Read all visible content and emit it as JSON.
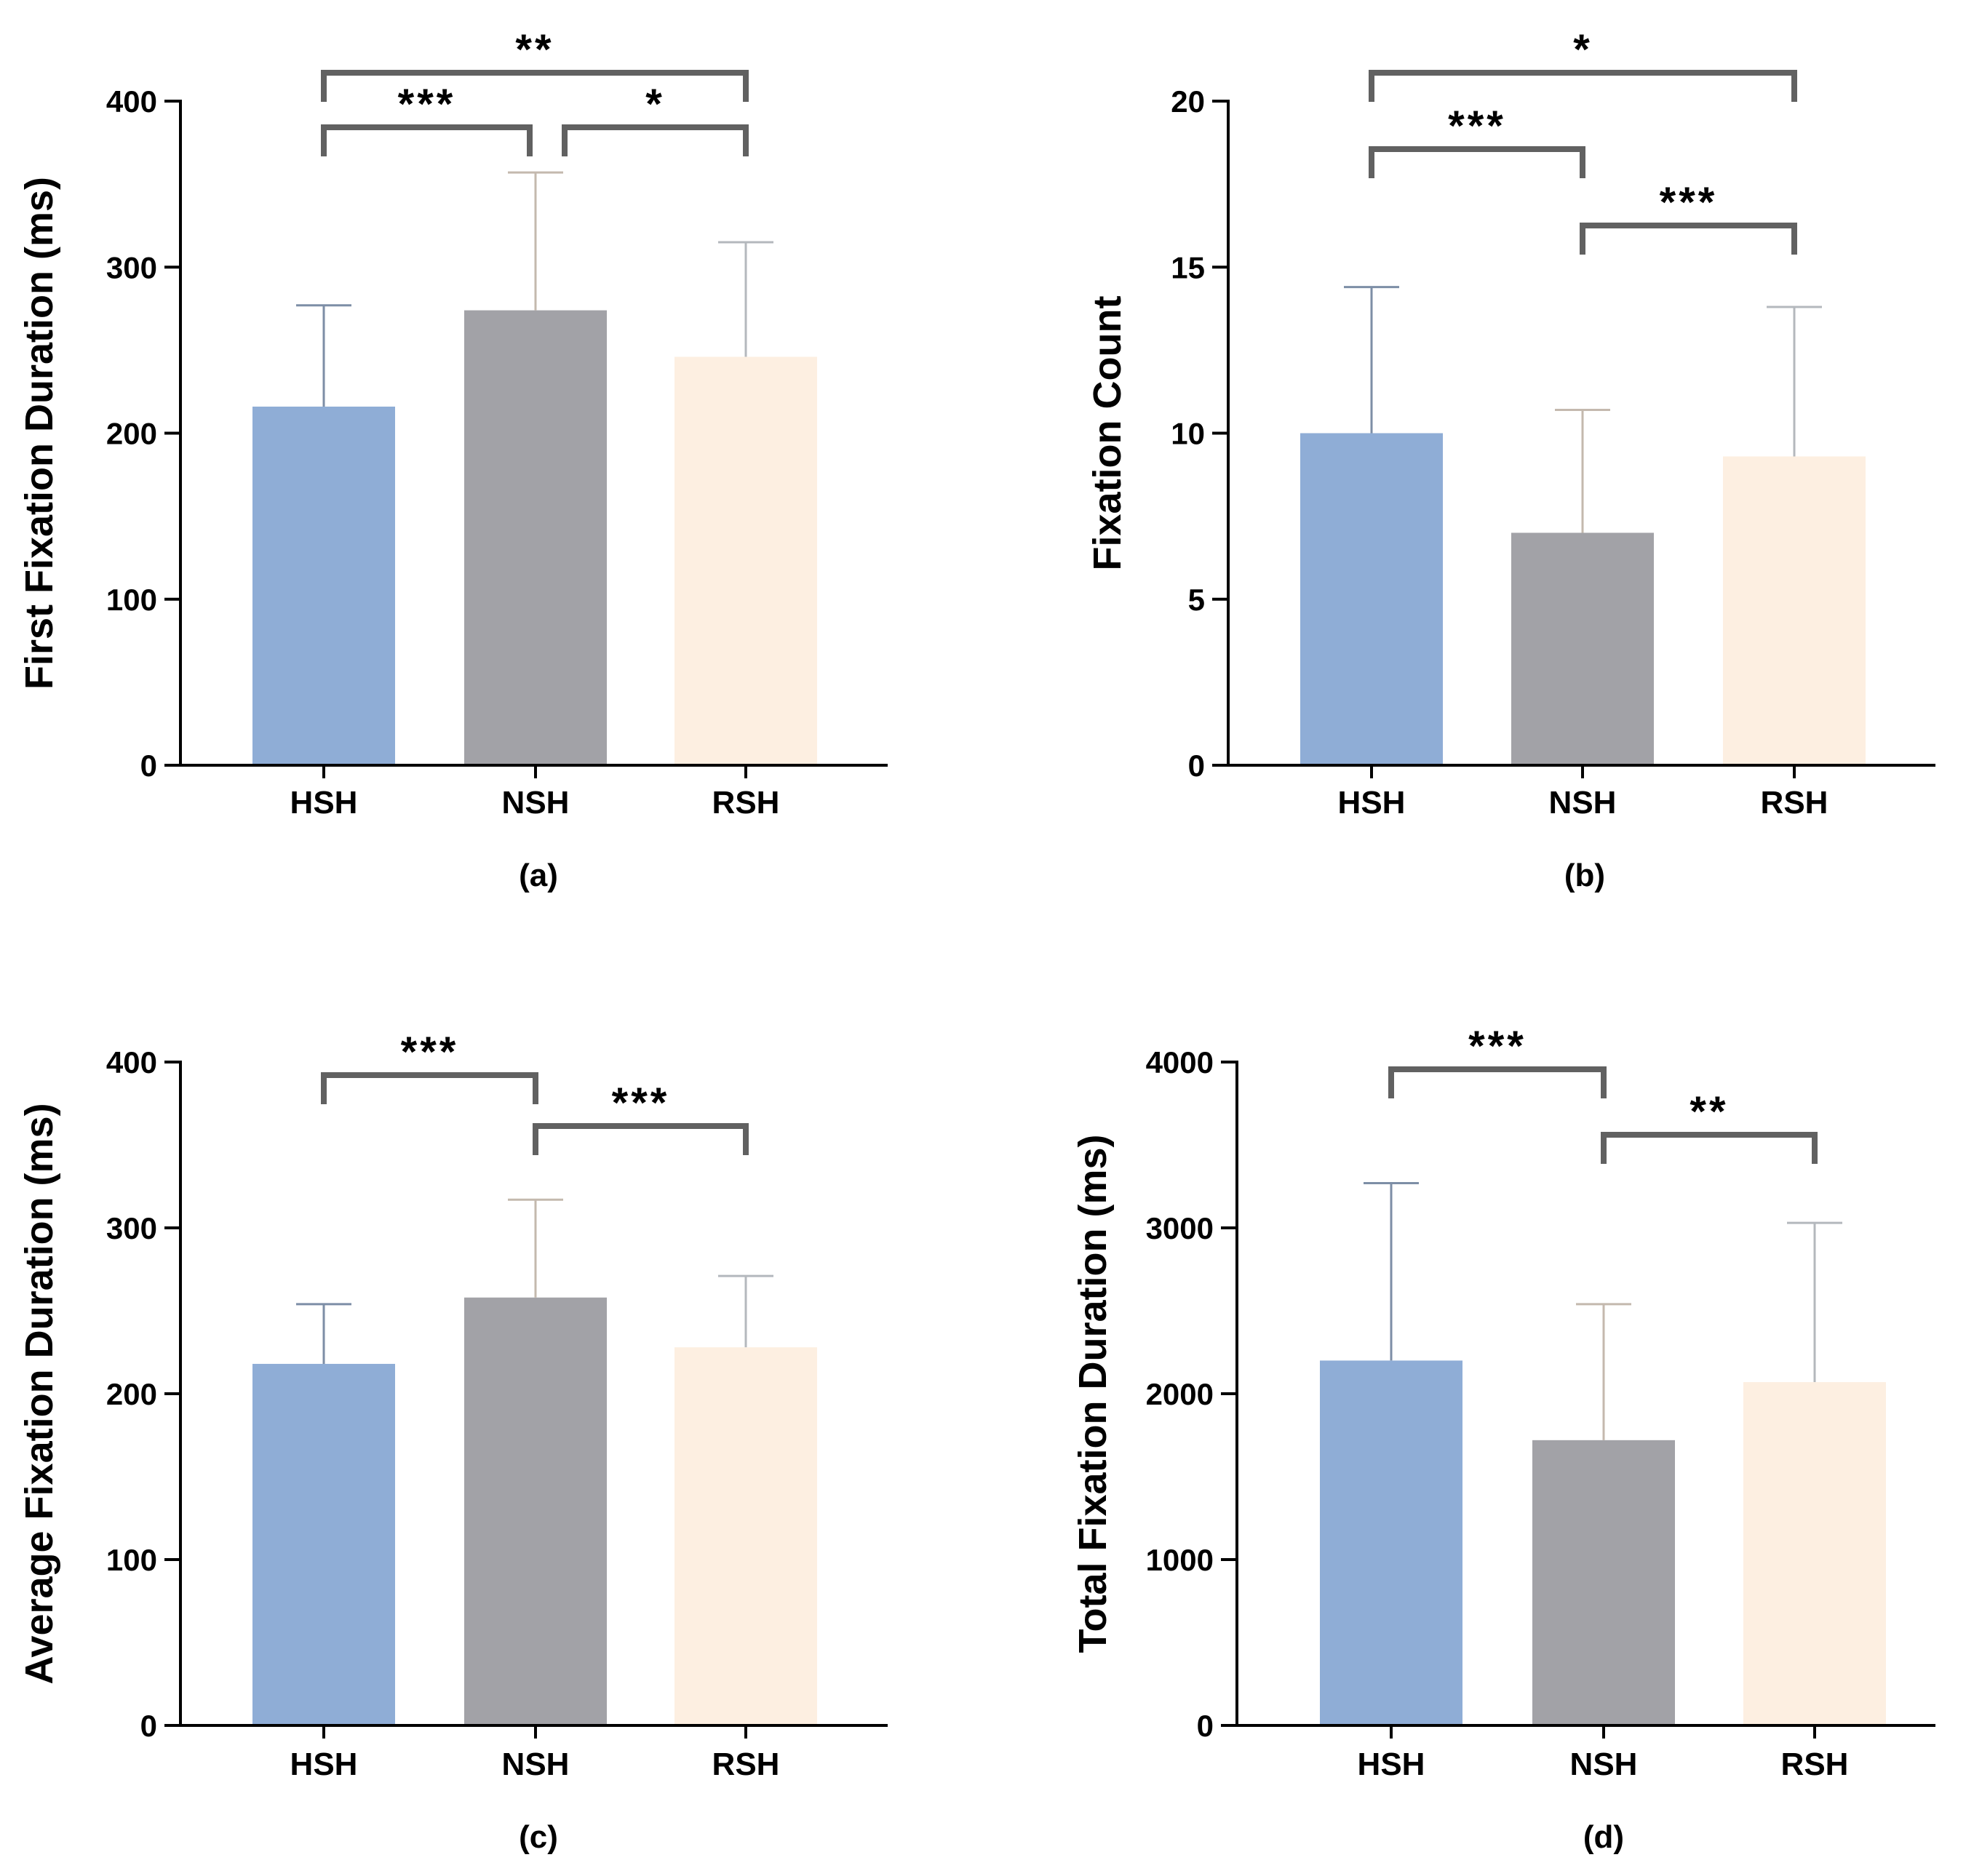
{
  "colors": {
    "HSH": "#8fadd6",
    "HSH_error": "#7d8ea6",
    "NSH": "#a2a2a7",
    "NSH_error": "#c4b9ae",
    "RSH": "#fdefe1",
    "RSH_error": "#b4b8bd",
    "axis": "#000000",
    "bracket": "#616161"
  },
  "chart_data": [
    {
      "id": "a",
      "type": "bar",
      "caption": "(a)",
      "ylabel": "First Fixation Duration (ms)",
      "xlabel": "",
      "categories": [
        "HSH",
        "NSH",
        "RSH"
      ],
      "values": [
        216,
        274,
        246
      ],
      "errors": [
        61,
        83,
        69
      ],
      "ylim": [
        0,
        400
      ],
      "yticks": [
        0,
        100,
        200,
        300,
        400
      ],
      "ytick_labels": [
        "0",
        "100",
        "200",
        "300",
        "400"
      ],
      "significance": [
        {
          "from": "HSH",
          "to": "NSH",
          "label": "***",
          "level": 1
        },
        {
          "from": "NSH",
          "to": "RSH",
          "label": "*",
          "level": 1
        },
        {
          "from": "HSH",
          "to": "RSH",
          "label": "**",
          "level": 2
        }
      ]
    },
    {
      "id": "b",
      "type": "bar",
      "caption": "(b)",
      "ylabel": "Fixation Count",
      "xlabel": "",
      "categories": [
        "HSH",
        "NSH",
        "RSH"
      ],
      "values": [
        10.0,
        7.0,
        9.3
      ],
      "errors": [
        4.4,
        3.7,
        4.5
      ],
      "ylim": [
        0,
        20
      ],
      "yticks": [
        0,
        5,
        10,
        15,
        20
      ],
      "ytick_labels": [
        "0",
        "5",
        "10",
        "15",
        "20"
      ],
      "significance": [
        {
          "from": "NSH",
          "to": "RSH",
          "label": "***",
          "level": 1
        },
        {
          "from": "HSH",
          "to": "NSH",
          "label": "***",
          "level": 2
        },
        {
          "from": "HSH",
          "to": "RSH",
          "label": "*",
          "level": 3
        }
      ]
    },
    {
      "id": "c",
      "type": "bar",
      "caption": "(c)",
      "ylabel": "Average Fixation Duration (ms)",
      "xlabel": "",
      "categories": [
        "HSH",
        "NSH",
        "RSH"
      ],
      "values": [
        218,
        258,
        228
      ],
      "errors": [
        36,
        59,
        43
      ],
      "ylim": [
        0,
        400
      ],
      "yticks": [
        0,
        100,
        200,
        300,
        400
      ],
      "ytick_labels": [
        "0",
        "100",
        "200",
        "300",
        "400"
      ],
      "significance": [
        {
          "from": "NSH",
          "to": "RSH",
          "label": "***",
          "level": 1
        },
        {
          "from": "HSH",
          "to": "NSH",
          "label": "***",
          "level": 2
        }
      ]
    },
    {
      "id": "d",
      "type": "bar",
      "caption": "(d)",
      "ylabel": "Total Fixation Duration (ms)",
      "xlabel": "",
      "categories": [
        "HSH",
        "NSH",
        "RSH"
      ],
      "values": [
        2200,
        1720,
        2070
      ],
      "errors": [
        1070,
        820,
        960
      ],
      "ylim": [
        0,
        4000
      ],
      "yticks": [
        0,
        1000,
        2000,
        3000,
        4000
      ],
      "ytick_labels": [
        "0",
        "1000",
        "2000",
        "3000",
        "4000"
      ],
      "significance": [
        {
          "from": "NSH",
          "to": "RSH",
          "label": "**",
          "level": 1
        },
        {
          "from": "HSH",
          "to": "NSH",
          "label": "***",
          "level": 2
        }
      ]
    }
  ]
}
